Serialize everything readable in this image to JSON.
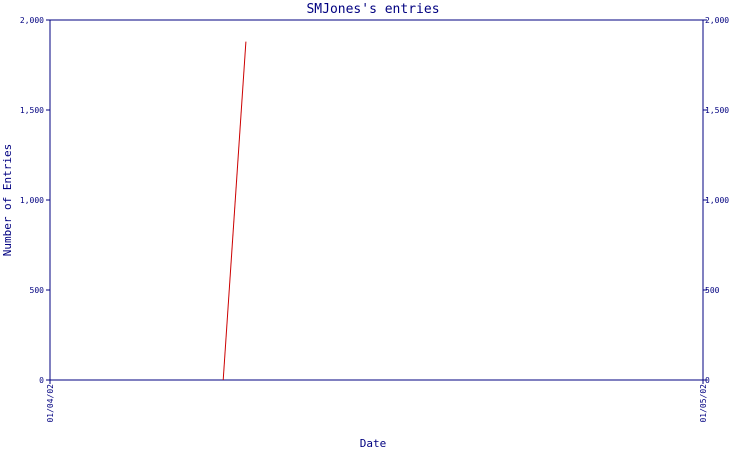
{
  "chart_data": {
    "type": "line",
    "title": "SMJones's entries",
    "xlabel": "Date",
    "ylabel": "Number of Entries",
    "ylim": [
      0,
      2000
    ],
    "y_ticks": [
      {
        "value": 0,
        "label": "0"
      },
      {
        "value": 500,
        "label": "500"
      },
      {
        "value": 1000,
        "label": "1,000"
      },
      {
        "value": 1500,
        "label": "1,500"
      },
      {
        "value": 2000,
        "label": "2,000"
      }
    ],
    "xlim": [
      "2002-01-04",
      "2002-01-05"
    ],
    "x_ticks": [
      {
        "value": "2002-01-04",
        "label": "01/04/02"
      },
      {
        "value": "2002-01-05",
        "label": "01/05/02"
      }
    ],
    "series": [
      {
        "color": "#cc0000",
        "points": [
          {
            "x": "2002-01-04T06:22",
            "y": 0
          },
          {
            "x": "2002-01-04T07:12",
            "y": 1880
          }
        ]
      }
    ],
    "grid": false,
    "right_axis_mirrors_left": true,
    "colors": {
      "axis": "#000080",
      "line": "#cc0000",
      "background": "#ffffff"
    }
  }
}
